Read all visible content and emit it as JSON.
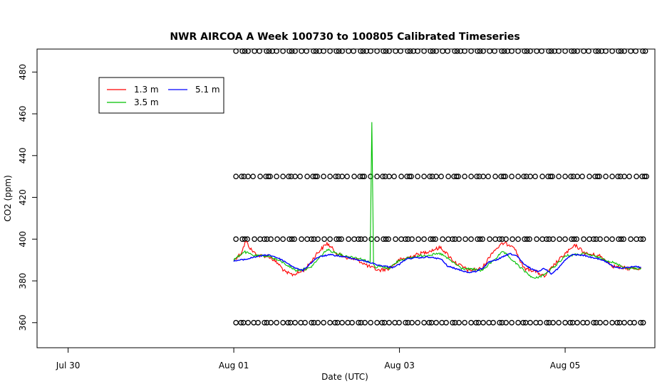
{
  "chart_data": {
    "type": "line",
    "title": "NWR AIRCOA A  Week 100730 to 100805  Calibrated Timeseries",
    "xlabel": "Date (UTC)",
    "ylabel": "CO2 (ppm)",
    "xlim": [
      "2010-07-29T15:00",
      "2010-08-06T02:00"
    ],
    "ylim": [
      348,
      491
    ],
    "x_ticks": [
      {
        "label": "Jul 30",
        "value": "2010-07-30T00:00"
      },
      {
        "label": "Aug 01",
        "value": "2010-08-01T00:00"
      },
      {
        "label": "Aug 03",
        "value": "2010-08-03T00:00"
      },
      {
        "label": "Aug 05",
        "value": "2010-08-05T00:00"
      }
    ],
    "y_ticks": [
      360,
      380,
      400,
      420,
      440,
      460,
      480
    ],
    "legend": {
      "placement": "top-left",
      "entries": [
        {
          "label": "1.3 m",
          "color": "#ff0000"
        },
        {
          "label": "5.1 m",
          "color": "#0000ff"
        },
        {
          "label": "3.5 m",
          "color": "#00c000"
        }
      ]
    },
    "series": [
      {
        "name": "5.1 m",
        "color": "#0000ff",
        "x": [
          "2010-08-01T00:00",
          "2010-08-01T02:00",
          "2010-08-01T04:00",
          "2010-08-01T06:00",
          "2010-08-01T08:00",
          "2010-08-01T10:00",
          "2010-08-01T12:00",
          "2010-08-01T14:00",
          "2010-08-01T16:00",
          "2010-08-01T18:00",
          "2010-08-01T20:00",
          "2010-08-01T22:00",
          "2010-08-02T00:00",
          "2010-08-02T02:00",
          "2010-08-02T04:00",
          "2010-08-02T06:00",
          "2010-08-02T08:00",
          "2010-08-02T10:00",
          "2010-08-02T12:00",
          "2010-08-02T14:00",
          "2010-08-02T16:00",
          "2010-08-02T18:00",
          "2010-08-02T20:00",
          "2010-08-02T22:00",
          "2010-08-03T00:00",
          "2010-08-03T02:00",
          "2010-08-03T04:00",
          "2010-08-03T06:00",
          "2010-08-03T08:00",
          "2010-08-03T10:00",
          "2010-08-03T12:00",
          "2010-08-03T14:00",
          "2010-08-03T16:00",
          "2010-08-03T18:00",
          "2010-08-03T20:00",
          "2010-08-03T22:00",
          "2010-08-04T00:00",
          "2010-08-04T02:00",
          "2010-08-04T04:00",
          "2010-08-04T06:00",
          "2010-08-04T08:00",
          "2010-08-04T10:00",
          "2010-08-04T12:00",
          "2010-08-04T14:00",
          "2010-08-04T16:00",
          "2010-08-04T18:00",
          "2010-08-04T20:00",
          "2010-08-04T22:00",
          "2010-08-05T00:00",
          "2010-08-05T02:00",
          "2010-08-05T04:00",
          "2010-08-05T06:00",
          "2010-08-05T08:00",
          "2010-08-05T10:00",
          "2010-08-05T12:00",
          "2010-08-05T14:00",
          "2010-08-05T16:00",
          "2010-08-05T18:00",
          "2010-08-05T20:00",
          "2010-08-05T22:00"
        ],
        "values": [
          389.5,
          390,
          390.5,
          391.5,
          392,
          392.5,
          391.5,
          390,
          388,
          386,
          385,
          388,
          391,
          392,
          392.5,
          392,
          391.5,
          391,
          390,
          389.5,
          388.5,
          387.5,
          387,
          386.5,
          388,
          390.5,
          391,
          391,
          391.5,
          391,
          390.5,
          387,
          386,
          385,
          384,
          384.5,
          386,
          389,
          390,
          391.5,
          393,
          392,
          388,
          386,
          384.5,
          386,
          383.5,
          386,
          390,
          392.5,
          392.5,
          392,
          391,
          390.5,
          389,
          387,
          386,
          386.5,
          387,
          386.5
        ]
      },
      {
        "name": "1.3 m",
        "color": "#ff0000",
        "x": [
          "2010-08-01T00:00",
          "2010-08-01T02:00",
          "2010-08-01T03:30",
          "2010-08-01T05:00",
          "2010-08-01T07:00",
          "2010-08-01T10:00",
          "2010-08-01T13:00",
          "2010-08-01T15:00",
          "2010-08-01T17:00",
          "2010-08-01T19:00",
          "2010-08-01T21:00",
          "2010-08-02T00:00",
          "2010-08-02T03:00",
          "2010-08-02T06:00",
          "2010-08-02T09:00",
          "2010-08-02T12:00",
          "2010-08-02T15:00",
          "2010-08-02T18:00",
          "2010-08-02T21:00",
          "2010-08-03T00:00",
          "2010-08-03T04:00",
          "2010-08-03T08:00",
          "2010-08-03T12:00",
          "2010-08-03T16:00",
          "2010-08-03T20:00",
          "2010-08-04T00:00",
          "2010-08-04T03:00",
          "2010-08-04T06:00",
          "2010-08-04T09:00",
          "2010-08-04T12:00",
          "2010-08-04T15:00",
          "2010-08-04T18:00",
          "2010-08-04T21:00",
          "2010-08-05T00:00",
          "2010-08-05T03:00",
          "2010-08-05T06:00",
          "2010-08-05T10:00",
          "2010-08-05T14:00",
          "2010-08-05T18:00",
          "2010-08-05T22:00"
        ],
        "values": [
          390,
          393,
          399,
          395,
          392,
          392,
          388,
          384,
          383,
          384,
          386,
          393,
          398,
          393,
          391,
          390,
          387,
          385,
          386,
          390,
          392,
          394,
          396,
          389,
          385,
          386,
          394,
          398,
          397,
          386,
          385,
          382,
          388,
          393,
          397,
          393,
          392,
          387,
          386,
          386
        ]
      },
      {
        "name": "3.5 m",
        "color": "#00c000",
        "x": [
          "2010-08-01T00:00",
          "2010-08-01T03:00",
          "2010-08-01T06:00",
          "2010-08-01T10:00",
          "2010-08-01T14:00",
          "2010-08-01T18:00",
          "2010-08-01T22:00",
          "2010-08-02T03:00",
          "2010-08-02T08:00",
          "2010-08-02T12:00",
          "2010-08-02T15:30",
          "2010-08-02T16:00",
          "2010-08-02T16:30",
          "2010-08-02T17:00",
          "2010-08-02T18:00",
          "2010-08-02T21:00",
          "2010-08-03T00:00",
          "2010-08-03T06:00",
          "2010-08-03T12:00",
          "2010-08-03T18:00",
          "2010-08-04T00:00",
          "2010-08-04T06:00",
          "2010-08-04T12:00",
          "2010-08-04T15:00",
          "2010-08-04T18:00",
          "2010-08-04T21:00",
          "2010-08-05T00:00",
          "2010-08-05T06:00",
          "2010-08-05T12:00",
          "2010-08-05T18:00",
          "2010-08-05T22:00"
        ],
        "values": [
          390,
          394,
          392,
          392,
          389,
          385,
          386,
          395,
          392,
          391,
          389,
          456,
          388,
          386,
          387,
          386,
          390,
          392,
          393,
          386,
          385,
          394,
          385,
          381,
          383,
          387,
          392,
          393,
          390,
          386,
          386
        ]
      }
    ],
    "marker_rows": [
      {
        "y": 490,
        "x_start": "2010-08-01T00:00",
        "x_end": "2010-08-06T00:00"
      },
      {
        "y": 430,
        "x_start": "2010-08-01T00:00",
        "x_end": "2010-08-06T00:00"
      },
      {
        "y": 400,
        "x_start": "2010-08-01T00:00",
        "x_end": "2010-08-06T00:00"
      },
      {
        "y": 360,
        "x_start": "2010-08-01T00:00",
        "x_end": "2010-08-06T00:00"
      }
    ]
  }
}
